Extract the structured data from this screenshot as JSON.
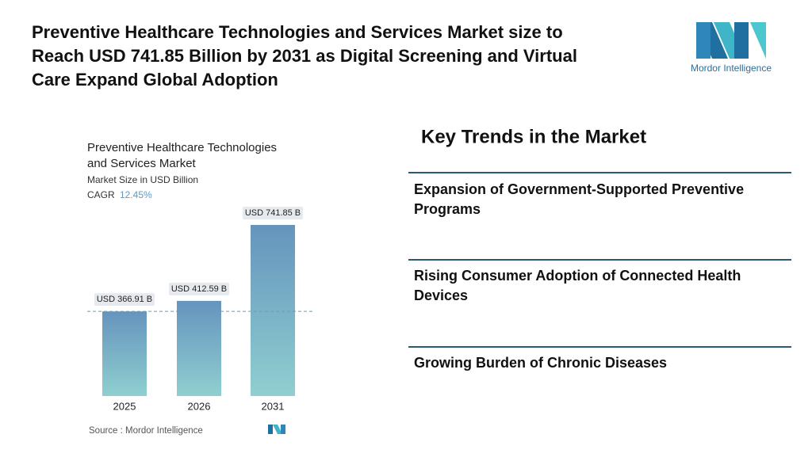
{
  "header": {
    "title_lines": [
      "Preventive Healthcare Technologies and Services Market size to",
      "Reach USD 741.85 Billion by 2031 as Digital Screening and Virtual",
      "Care Expand Global Adoption"
    ]
  },
  "logo": {
    "text": "Mordor Intelligence"
  },
  "chart_data": {
    "type": "bar",
    "title_lines": [
      "Preventive Healthcare Technologies",
      "and Services Market"
    ],
    "subtitle": "Market Size in USD Billion",
    "cagr_label": "CAGR",
    "cagr_value": "12.45%",
    "categories": [
      "2025",
      "2026",
      "2031"
    ],
    "values": [
      366.91,
      412.59,
      741.85
    ],
    "value_labels": [
      "USD 366.91 B",
      "USD 412.59 B",
      "USD 741.85 B"
    ],
    "source": "Source : Mordor Intelligence"
  },
  "trends": {
    "title": "Key Trends in the Market",
    "items": [
      [
        "Expansion of Government-Supported Preventive",
        "Programs"
      ],
      [
        "Rising Consumer Adoption of Connected Health",
        "Devices"
      ],
      [
        "Growing Burden of Chronic Diseases"
      ]
    ]
  }
}
